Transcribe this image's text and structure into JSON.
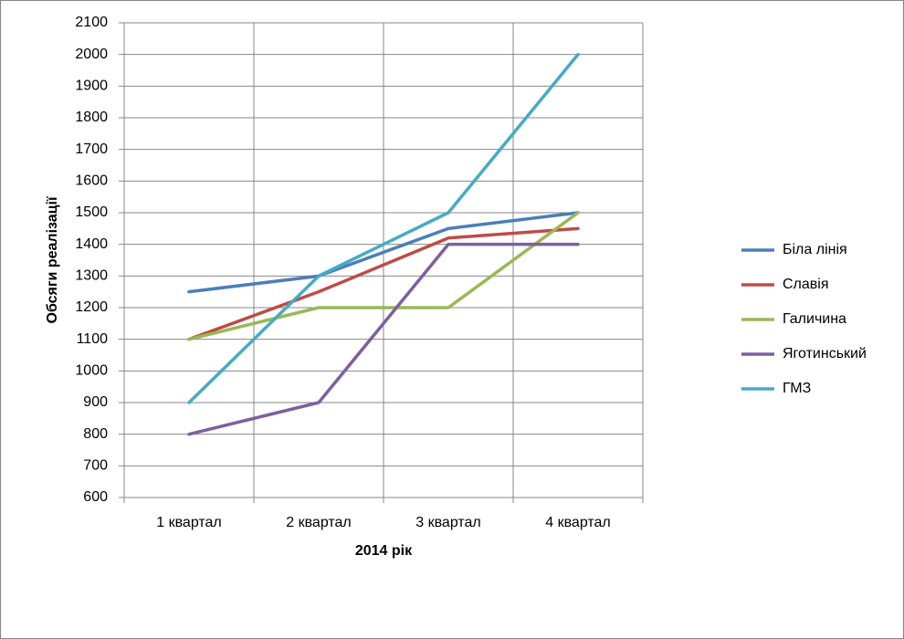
{
  "chart_data": {
    "type": "line",
    "x_label": "2014 рік",
    "y_label": "Обсяги реалізації",
    "categories": [
      "1 квартал",
      "2 квартал",
      "3 квартал",
      "4 квартал"
    ],
    "series": [
      {
        "name": "Біла лінія",
        "color": "#4a7ebb",
        "values": [
          1250,
          1300,
          1450,
          1500
        ]
      },
      {
        "name": "Славія",
        "color": "#be4b48",
        "values": [
          1100,
          1250,
          1420,
          1450
        ]
      },
      {
        "name": "Галичина",
        "color": "#98b954",
        "values": [
          1100,
          1200,
          1200,
          1500
        ]
      },
      {
        "name": "Яготинський",
        "color": "#7d5fa0",
        "values": [
          800,
          900,
          1400,
          1400
        ]
      },
      {
        "name": "ГМЗ",
        "color": "#46aac5",
        "values": [
          900,
          1300,
          1500,
          2000
        ]
      }
    ],
    "ylim": [
      600,
      2100
    ],
    "yticks": [
      600,
      700,
      800,
      900,
      1000,
      1100,
      1200,
      1300,
      1400,
      1500,
      1600,
      1700,
      1800,
      1900,
      2000,
      2100
    ],
    "grid": true,
    "legend": "right"
  }
}
